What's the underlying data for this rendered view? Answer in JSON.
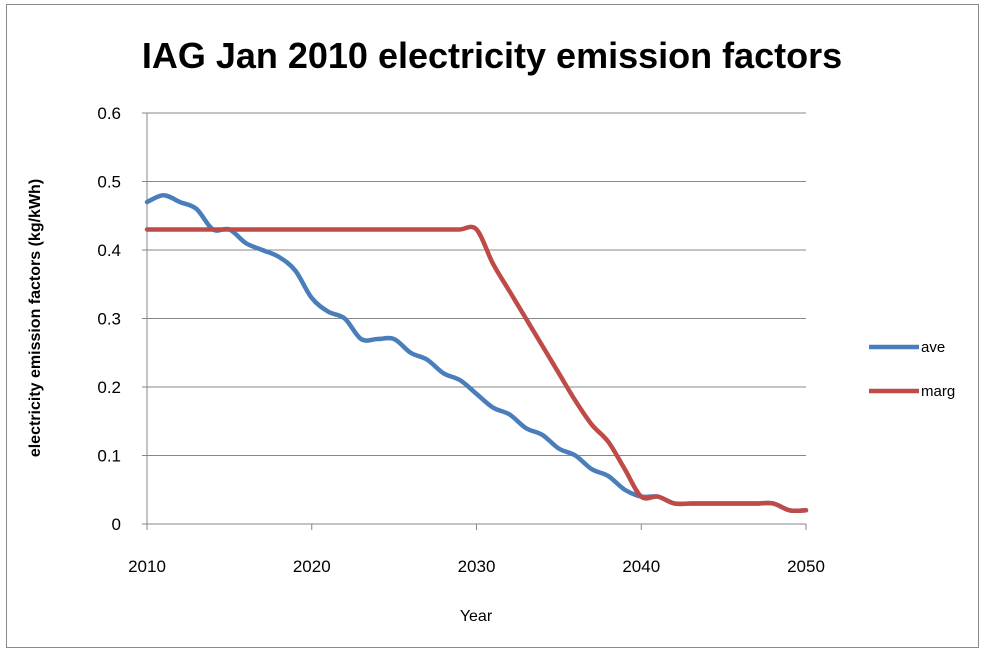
{
  "chart_data": {
    "type": "line",
    "title": "IAG Jan 2010  electricity emission factors",
    "xlabel": "Year",
    "ylabel": "electricity emission  factors  (kg/kWh)",
    "xlim": [
      2010,
      2050
    ],
    "ylim": [
      0,
      0.6
    ],
    "xticks": [
      2010,
      2020,
      2030,
      2040,
      2050
    ],
    "yticks": [
      0,
      0.1,
      0.2,
      0.3,
      0.4,
      0.5,
      0.6
    ],
    "ytick_labels": [
      "0",
      "0.1",
      "0.2",
      "0.3",
      "0.4",
      "0.5",
      "0.6"
    ],
    "grid": "horizontal",
    "legend_position": "right",
    "x": [
      2010,
      2011,
      2012,
      2013,
      2014,
      2015,
      2016,
      2017,
      2018,
      2019,
      2020,
      2021,
      2022,
      2023,
      2024,
      2025,
      2026,
      2027,
      2028,
      2029,
      2030,
      2031,
      2032,
      2033,
      2034,
      2035,
      2036,
      2037,
      2038,
      2039,
      2040,
      2041,
      2042,
      2043,
      2044,
      2045,
      2046,
      2047,
      2048,
      2049,
      2050
    ],
    "series": [
      {
        "name": "ave",
        "color": "#4a7ebb",
        "values": [
          0.47,
          0.48,
          0.47,
          0.46,
          0.43,
          0.43,
          0.41,
          0.4,
          0.39,
          0.37,
          0.33,
          0.31,
          0.3,
          0.27,
          0.27,
          0.27,
          0.25,
          0.24,
          0.22,
          0.21,
          0.19,
          0.17,
          0.16,
          0.14,
          0.13,
          0.11,
          0.1,
          0.08,
          0.07,
          0.05,
          0.04,
          0.04,
          0.03,
          0.03,
          0.03,
          0.03,
          0.03,
          0.03,
          0.03,
          0.02,
          0.02
        ]
      },
      {
        "name": "marg",
        "color": "#be4b48",
        "values": [
          0.43,
          0.43,
          0.43,
          0.43,
          0.43,
          0.43,
          0.43,
          0.43,
          0.43,
          0.43,
          0.43,
          0.43,
          0.43,
          0.43,
          0.43,
          0.43,
          0.43,
          0.43,
          0.43,
          0.43,
          0.43,
          0.38,
          0.34,
          0.3,
          0.26,
          0.22,
          0.18,
          0.145,
          0.12,
          0.08,
          0.04,
          0.04,
          0.03,
          0.03,
          0.03,
          0.03,
          0.03,
          0.03,
          0.03,
          0.02,
          0.02
        ]
      }
    ]
  }
}
